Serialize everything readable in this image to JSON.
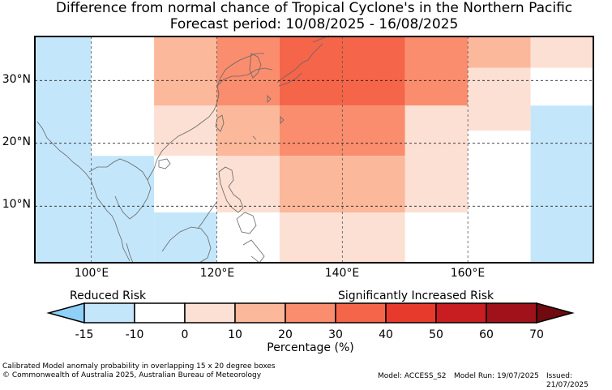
{
  "title": "Difference from normal chance of Tropical Cyclone's in the Northern Pacific",
  "subtitle": "Forecast period: 10/08/2025 - 16/08/2025",
  "lat_labels": [
    "30°N",
    "20°N",
    "10°N"
  ],
  "lon_labels": [
    "100°E",
    "120°E",
    "140°E",
    "160°E"
  ],
  "legend": {
    "reduced": "Reduced Risk",
    "increased": "Significantly Increased Risk",
    "ticks": [
      "-15",
      "-10",
      "0",
      "10",
      "20",
      "30",
      "40",
      "50",
      "60",
      "70"
    ],
    "axis_label": "Percentage (%)",
    "colors": [
      "#8fd0f8",
      "#c4e6fb",
      "#ffffff",
      "#fde0d4",
      "#fbb89b",
      "#f98d6e",
      "#f5654a",
      "#e73a2d",
      "#c81e22",
      "#a01219",
      "#700a0e"
    ]
  },
  "footer": {
    "desc": "Calibrated Model anomaly probability in overlapping 15 x 20 degree boxes",
    "copyright": "© Commonwealth of Australia 2025, Australian Bureau of Meteorology",
    "model": "Model: ACCESS_S2",
    "run": "Model Run: 19/07/2025",
    "issued": "Issued: 21/07/2025"
  },
  "map_data": {
    "lon_range": [
      91,
      180
    ],
    "lat_range": [
      1,
      37
    ],
    "cells": [
      {
        "lon": [
          91,
          100
        ],
        "lat": [
          1,
          37
        ],
        "v": -15
      },
      {
        "lon": [
          100,
          110
        ],
        "lat": [
          18,
          37
        ],
        "v": -10
      },
      {
        "lon": [
          100,
          110
        ],
        "lat": [
          1,
          18
        ],
        "v": -15
      },
      {
        "lon": [
          110,
          120
        ],
        "lat": [
          26,
          37
        ],
        "v": 10
      },
      {
        "lon": [
          110,
          120
        ],
        "lat": [
          18,
          26
        ],
        "v": 0
      },
      {
        "lon": [
          110,
          120
        ],
        "lat": [
          9,
          18
        ],
        "v": -10
      },
      {
        "lon": [
          110,
          120
        ],
        "lat": [
          1,
          9
        ],
        "v": -15
      },
      {
        "lon": [
          120,
          130
        ],
        "lat": [
          26,
          37
        ],
        "v": 20
      },
      {
        "lon": [
          120,
          130
        ],
        "lat": [
          18,
          26
        ],
        "v": 10
      },
      {
        "lon": [
          120,
          130
        ],
        "lat": [
          9,
          18
        ],
        "v": 0
      },
      {
        "lon": [
          120,
          130
        ],
        "lat": [
          1,
          9
        ],
        "v": -10
      },
      {
        "lon": [
          130,
          150
        ],
        "lat": [
          26,
          37
        ],
        "v": 30
      },
      {
        "lon": [
          130,
          150
        ],
        "lat": [
          18,
          26
        ],
        "v": 20
      },
      {
        "lon": [
          130,
          150
        ],
        "lat": [
          9,
          18
        ],
        "v": 10
      },
      {
        "lon": [
          130,
          150
        ],
        "lat": [
          1,
          9
        ],
        "v": 0
      },
      {
        "lon": [
          150,
          160
        ],
        "lat": [
          26,
          37
        ],
        "v": 20
      },
      {
        "lon": [
          150,
          160
        ],
        "lat": [
          9,
          26
        ],
        "v": 0
      },
      {
        "lon": [
          150,
          160
        ],
        "lat": [
          1,
          9
        ],
        "v": -10
      },
      {
        "lon": [
          160,
          170
        ],
        "lat": [
          32,
          37
        ],
        "v": 10
      },
      {
        "lon": [
          160,
          170
        ],
        "lat": [
          22,
          32
        ],
        "v": 0
      },
      {
        "lon": [
          160,
          170
        ],
        "lat": [
          1,
          22
        ],
        "v": -10
      },
      {
        "lon": [
          170,
          180
        ],
        "lat": [
          32,
          37
        ],
        "v": 0
      },
      {
        "lon": [
          170,
          180
        ],
        "lat": [
          26,
          32
        ],
        "v": -10
      },
      {
        "lon": [
          170,
          180
        ],
        "lat": [
          1,
          26
        ],
        "v": -15
      }
    ],
    "grid_lat": [
      30,
      20,
      10
    ],
    "grid_lon": [
      100,
      120,
      140,
      160
    ]
  }
}
